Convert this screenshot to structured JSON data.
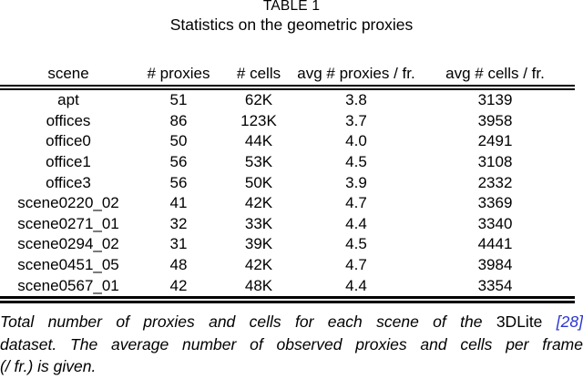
{
  "header": {
    "label": "TABLE 1",
    "title": "Statistics on the geometric proxies"
  },
  "table": {
    "columns": [
      "scene",
      "# proxies",
      "# cells",
      "avg # proxies / fr.",
      "avg # cells / fr."
    ],
    "rows": [
      [
        "apt",
        "51",
        "62K",
        "3.8",
        "3139"
      ],
      [
        "offices",
        "86",
        "123K",
        "3.7",
        "3958"
      ],
      [
        "office0",
        "50",
        "44K",
        "4.0",
        "2491"
      ],
      [
        "office1",
        "56",
        "53K",
        "4.5",
        "3108"
      ],
      [
        "office3",
        "56",
        "50K",
        "3.9",
        "2332"
      ],
      [
        "scene0220_02",
        "41",
        "42K",
        "4.7",
        "3369"
      ],
      [
        "scene0271_01",
        "32",
        "33K",
        "4.4",
        "3340"
      ],
      [
        "scene0294_02",
        "31",
        "39K",
        "4.5",
        "4441"
      ],
      [
        "scene0451_05",
        "48",
        "42K",
        "4.7",
        "3984"
      ],
      [
        "scene0567_01",
        "42",
        "48K",
        "4.4",
        "3354"
      ]
    ]
  },
  "caption": {
    "line1_text": "Total number of proxies and cells for each scene of the",
    "line1_brand": "3DLite",
    "line1_citation": "[28]",
    "line2": "dataset. The average number of observed proxies and cells per frame",
    "line3": "(/ fr.) is given."
  },
  "colors": {
    "text": "#000000",
    "background": "#ffffff",
    "citation": "#2b35d1"
  }
}
